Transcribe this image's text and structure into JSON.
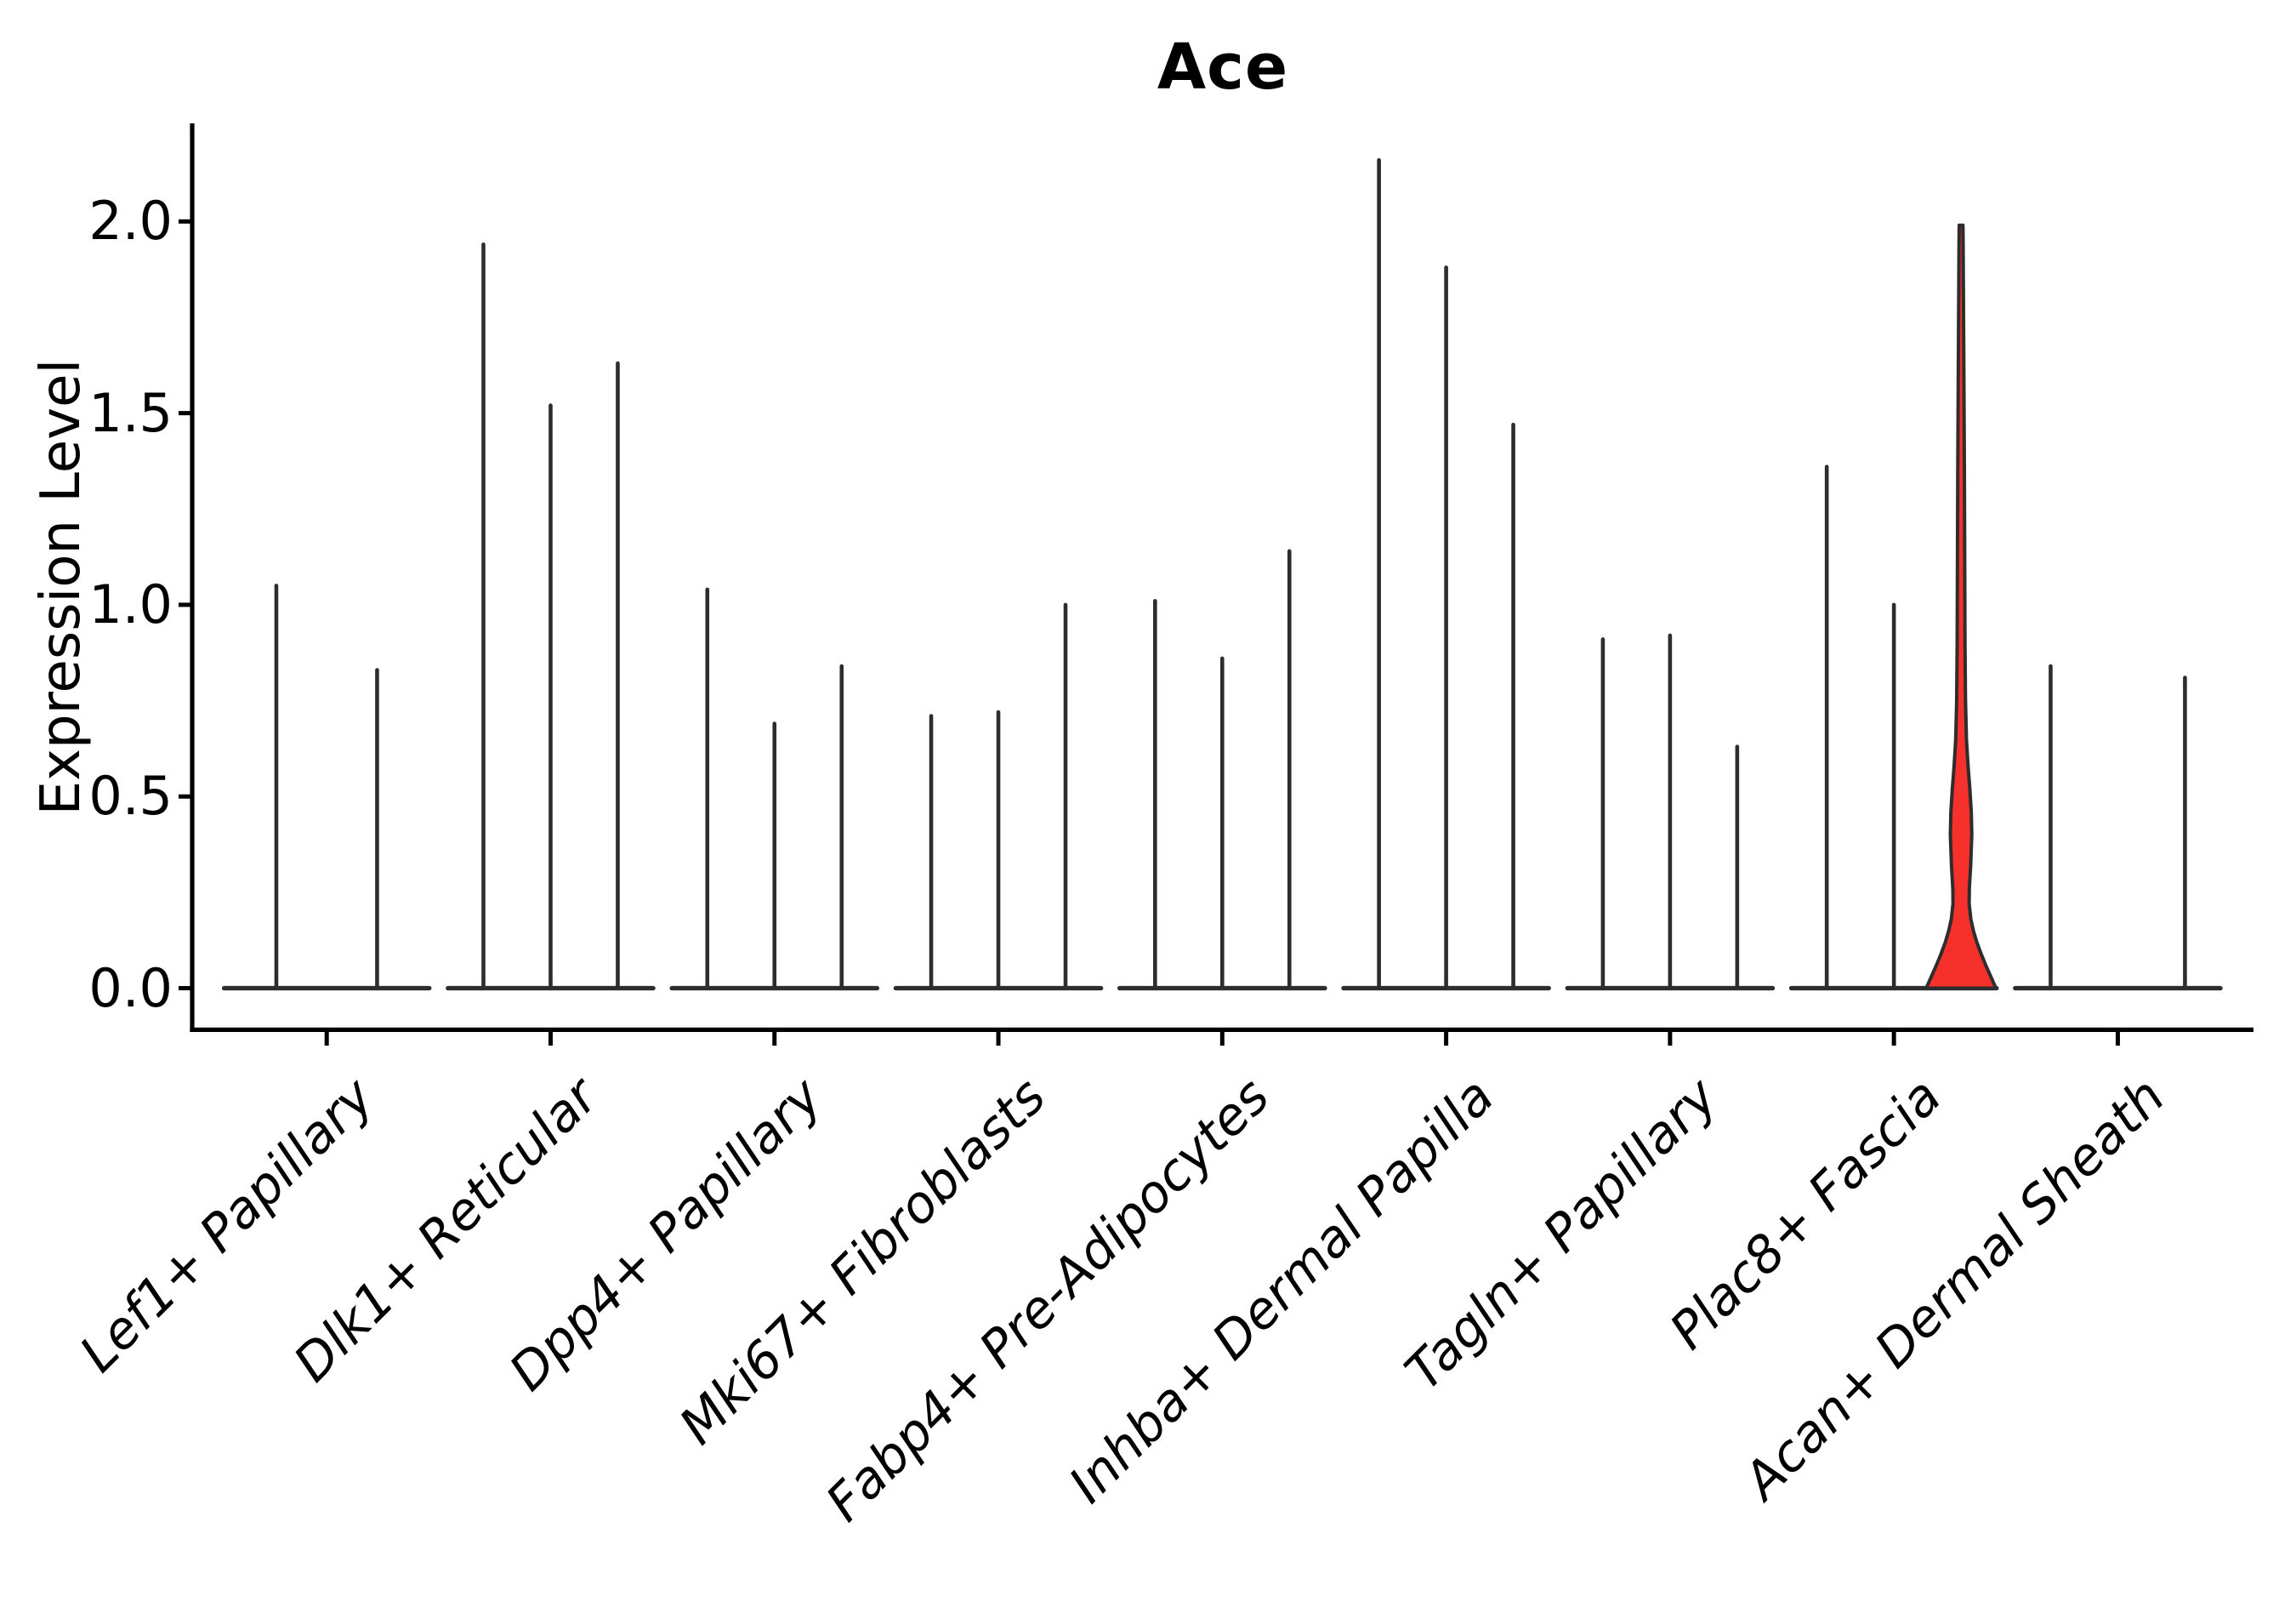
{
  "chart_data": {
    "type": "violin",
    "title": "Ace",
    "ylabel": "Expression Level",
    "xlabel": "",
    "yticks": [
      0.0,
      0.5,
      1.0,
      1.5,
      2.0
    ],
    "ylim": [
      -0.11,
      2.26
    ],
    "grid": false,
    "legend": "none",
    "line_color": "#2d2d2d",
    "spine_color": "#000000",
    "highlight_fill": "#f6302a",
    "categories": [
      "Lef1+ Papillary",
      "Dlk1+ Reticular",
      "Dpp4+ Papillary",
      "Mki67+ Fibroblasts",
      "Fabp4+ Pre-Adipocytes",
      "Inhba+ Dermal Papilla",
      "Tagln+ Papillary",
      "Plac8+ Fascia",
      "Acan+ Dermal Sheath"
    ],
    "groups": [
      {
        "category": "Lef1+ Papillary",
        "violins": [
          {
            "offset": -0.225,
            "max": 1.05
          },
          {
            "offset": 0.225,
            "max": 0.83
          }
        ]
      },
      {
        "category": "Dlk1+ Reticular",
        "violins": [
          {
            "offset": -0.3,
            "max": 1.94
          },
          {
            "offset": 0.0,
            "max": 1.52
          },
          {
            "offset": 0.3,
            "max": 1.63
          }
        ]
      },
      {
        "category": "Dpp4+ Papillary",
        "violins": [
          {
            "offset": -0.3,
            "max": 1.04
          },
          {
            "offset": 0.0,
            "max": 0.69
          },
          {
            "offset": 0.3,
            "max": 0.84
          }
        ]
      },
      {
        "category": "Mki67+ Fibroblasts",
        "violins": [
          {
            "offset": -0.3,
            "max": 0.71
          },
          {
            "offset": 0.0,
            "max": 0.72
          },
          {
            "offset": 0.3,
            "max": 1.0
          }
        ]
      },
      {
        "category": "Fabp4+ Pre-Adipocytes",
        "violins": [
          {
            "offset": -0.3,
            "max": 1.01
          },
          {
            "offset": 0.0,
            "max": 0.86
          },
          {
            "offset": 0.3,
            "max": 1.14
          }
        ]
      },
      {
        "category": "Inhba+ Dermal Papilla",
        "violins": [
          {
            "offset": -0.3,
            "max": 2.16
          },
          {
            "offset": 0.0,
            "max": 1.88
          },
          {
            "offset": 0.3,
            "max": 1.47
          }
        ]
      },
      {
        "category": "Tagln+ Papillary",
        "violins": [
          {
            "offset": -0.3,
            "max": 0.91
          },
          {
            "offset": 0.0,
            "max": 0.92
          },
          {
            "offset": 0.3,
            "max": 0.63
          }
        ]
      },
      {
        "category": "Plac8+ Fascia",
        "violins": [
          {
            "offset": -0.3,
            "max": 1.36
          },
          {
            "offset": 0.0,
            "max": 1.0
          },
          {
            "offset": 0.3,
            "max": 1.99,
            "highlight": true
          }
        ]
      },
      {
        "category": "Acan+ Dermal Sheath",
        "violins": [
          {
            "offset": -0.3,
            "max": 0.84
          },
          {
            "offset": 0.3,
            "max": 0.81
          }
        ]
      }
    ],
    "highlight_violin": {
      "category": "Plac8+ Fascia",
      "offset": 0.3,
      "max": 1.99,
      "profile": [
        [
          0.0,
          41.0
        ],
        [
          0.03,
          35.0
        ],
        [
          0.06,
          29.0
        ],
        [
          0.09,
          23.5
        ],
        [
          0.12,
          18.5
        ],
        [
          0.15,
          14.5
        ],
        [
          0.18,
          11.5
        ],
        [
          0.22,
          9.5
        ],
        [
          0.26,
          9.7
        ],
        [
          0.32,
          11.3
        ],
        [
          0.4,
          12.6
        ],
        [
          0.46,
          12.0
        ],
        [
          0.52,
          10.3
        ],
        [
          0.58,
          8.2
        ],
        [
          0.65,
          6.3
        ],
        [
          0.75,
          5.2
        ],
        [
          0.9,
          4.6
        ],
        [
          1.1,
          4.3
        ],
        [
          1.35,
          3.9
        ],
        [
          1.6,
          3.3
        ],
        [
          1.8,
          2.8
        ],
        [
          1.95,
          2.4
        ],
        [
          1.99,
          2.2
        ]
      ]
    }
  }
}
